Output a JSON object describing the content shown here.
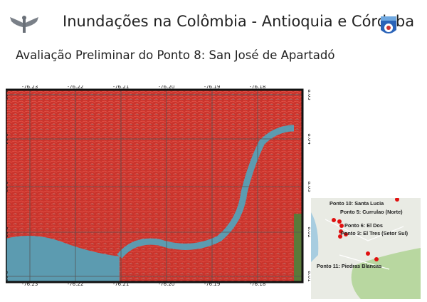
{
  "header": {
    "title": "Inundações na Colômbia - Antioquia e Córdoba",
    "subtitle": "Avaliação Preliminar do Ponto 8: San José de Apartadó",
    "left_logo_icon": "winged-emblem-icon",
    "right_logo_icon": "shield-badge-icon"
  },
  "map": {
    "longitude_ticks": [
      "-76.23",
      "-76.22",
      "-76.21",
      "-76.20",
      "-76.19",
      "-76.18"
    ],
    "latitude_ticks": [
      "8.05",
      "8.04",
      "8.03",
      "8.02",
      "8.01"
    ],
    "colors": {
      "flood_red": "#d9342b",
      "water": "#5c9bb0",
      "frame": "#111111"
    }
  },
  "inset": {
    "points": [
      {
        "label": "Ponto 10: Santa Lucia"
      },
      {
        "label": "Ponto 5: Currulao (Norte)"
      },
      {
        "label": "Ponto 6: El Dos"
      },
      {
        "label": "Ponto 3: El Tres (Setor Sul)"
      },
      {
        "label": "Ponto 11: Piedras Blancas"
      }
    ],
    "marker_color": "#e01010"
  }
}
